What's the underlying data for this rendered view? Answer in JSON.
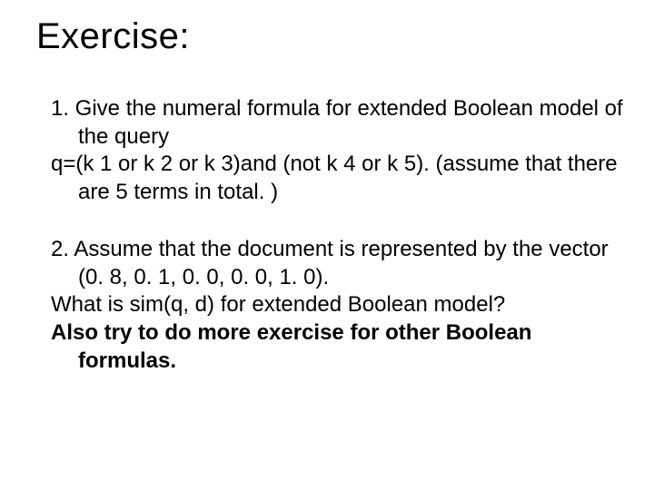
{
  "slide": {
    "background_color": "#ffffff",
    "text_color": "#000000",
    "font_family": "Arial",
    "title": {
      "text": "Exercise:",
      "fontsize": 40,
      "weight": 400
    },
    "q1": {
      "line1": "1. Give the numeral formula  for extended Boolean  model of  the query",
      "line2": "q=(k 1 or k 2 or k 3)and (not k 4 or k 5). (assume that there are 5 terms in total. )",
      "fontsize": 24
    },
    "q2": {
      "line1": "2. Assume that the document is represented by  the vector (0. 8, 0. 1, 0. 0, 0. 0, 1. 0).",
      "line2": "What is  sim(q, d) for extended Boolean model?",
      "line3": "Also try to do more exercise for other Boolean formulas.",
      "fontsize": 24,
      "line3_weight": 700
    }
  }
}
